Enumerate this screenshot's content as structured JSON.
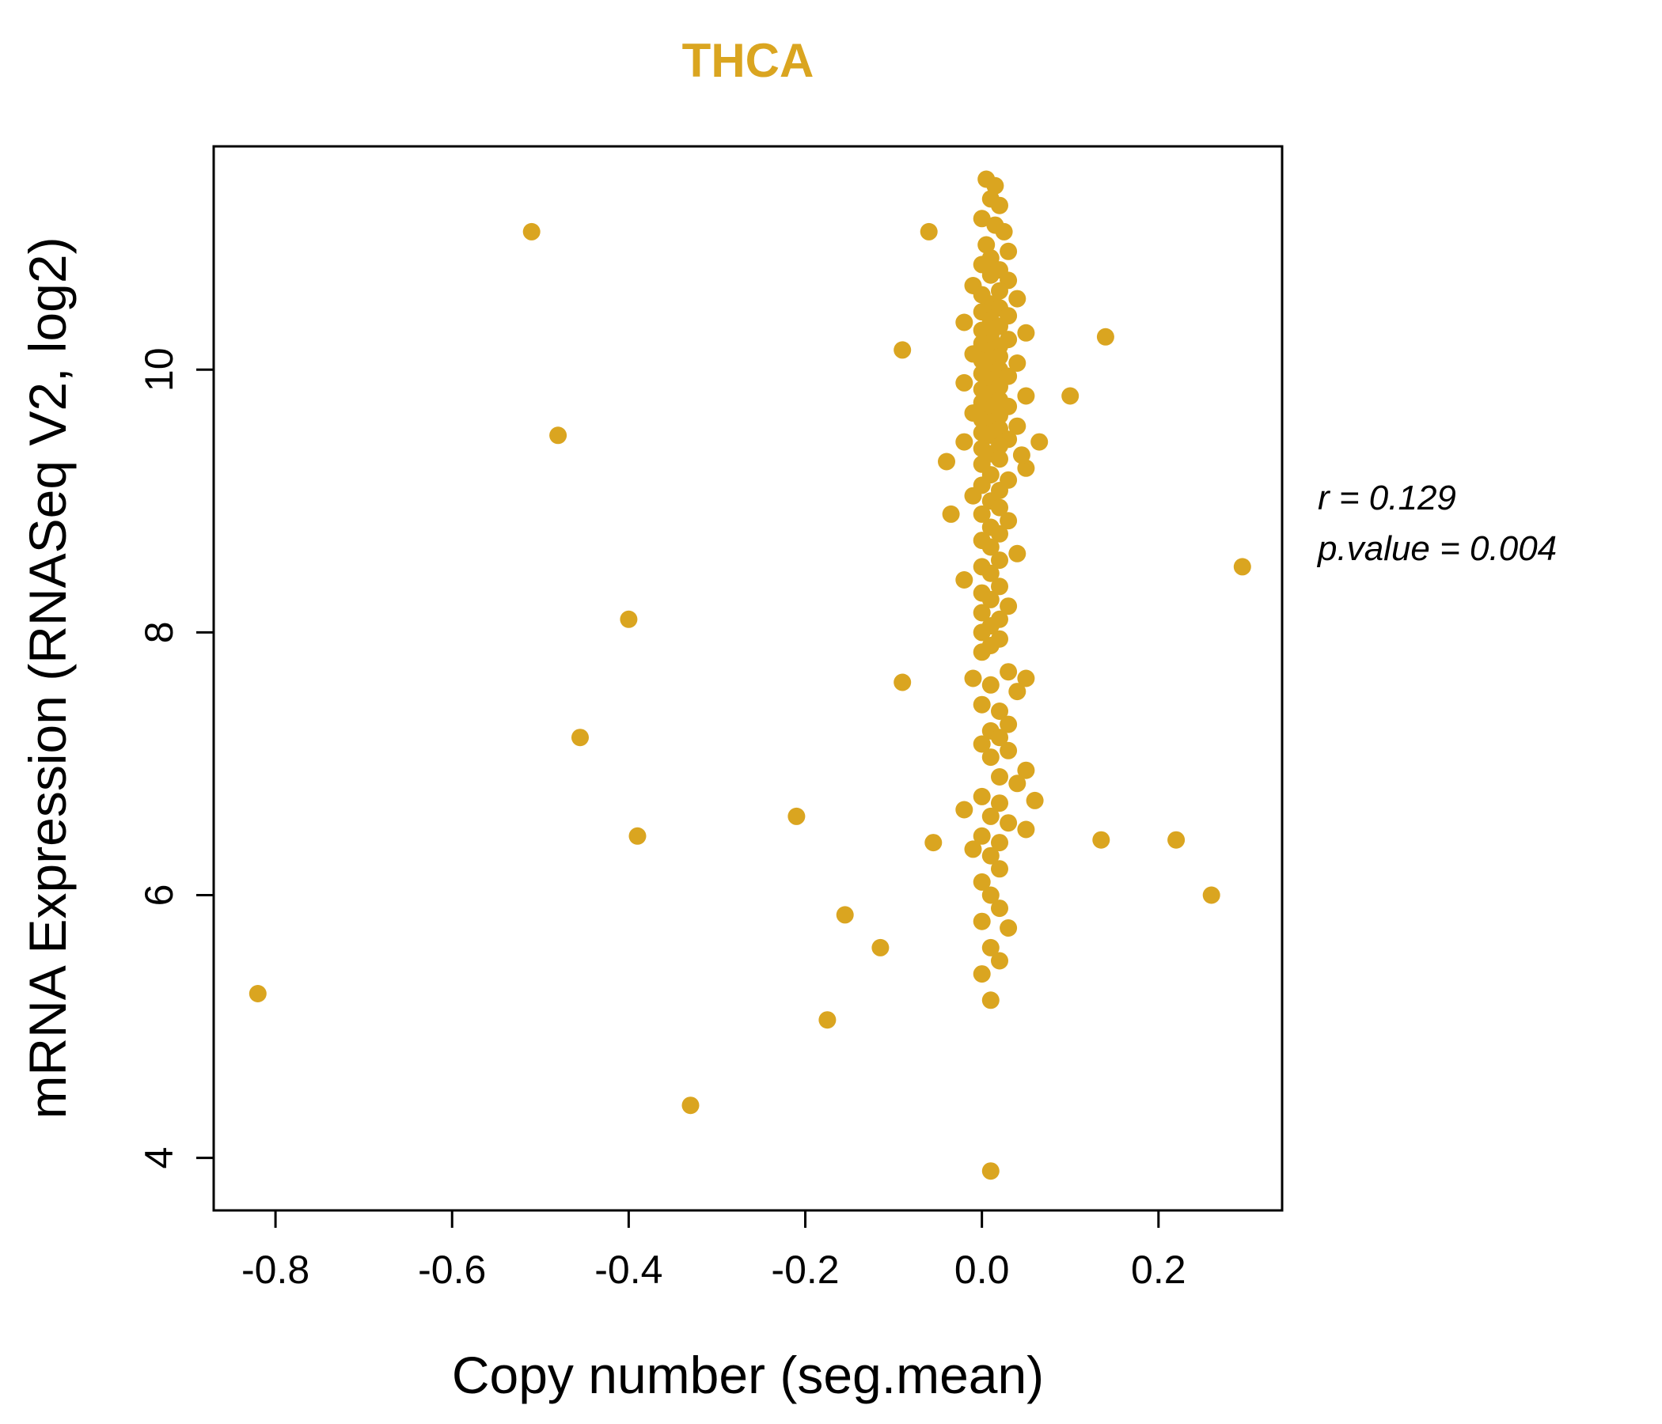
{
  "title": "THCA",
  "accent_color": "#DAA520",
  "xlabel": "Copy number (seg.mean)",
  "ylabel": "mRNA Expression (RNASeq V2, log2)",
  "annotation": {
    "line1": "r = 0.129",
    "line2": "p.value = 0.004"
  },
  "chart_data": {
    "type": "scatter",
    "title": "THCA",
    "xlabel": "Copy number (seg.mean)",
    "ylabel": "mRNA Expression (RNASeq V2, log2)",
    "legend": "none",
    "grid": false,
    "point_color": "#DAA520",
    "xlim": [
      -0.87,
      0.34
    ],
    "ylim": [
      3.6,
      11.7
    ],
    "x_tick_values": [
      -0.8,
      -0.6,
      -0.4,
      -0.2,
      0.0,
      0.2
    ],
    "x_tick_labels": [
      "-0.8",
      "-0.6",
      "-0.4",
      "-0.2",
      "0.0",
      "0.2"
    ],
    "y_tick_values": [
      4,
      6,
      8,
      10
    ],
    "y_tick_labels": [
      "4",
      "6",
      "8",
      "10"
    ],
    "correlation_r": 0.129,
    "p_value": 0.004,
    "points": [
      [
        -0.82,
        5.25
      ],
      [
        -0.51,
        11.05
      ],
      [
        -0.48,
        9.5
      ],
      [
        -0.455,
        7.2
      ],
      [
        -0.4,
        8.1
      ],
      [
        -0.39,
        6.45
      ],
      [
        -0.33,
        4.4
      ],
      [
        -0.21,
        6.6
      ],
      [
        -0.175,
        5.05
      ],
      [
        -0.155,
        5.85
      ],
      [
        -0.115,
        5.6
      ],
      [
        -0.09,
        7.62
      ],
      [
        -0.09,
        10.15
      ],
      [
        -0.06,
        11.05
      ],
      [
        -0.055,
        6.4
      ],
      [
        0.1,
        9.8
      ],
      [
        0.14,
        10.25
      ],
      [
        0.135,
        6.42
      ],
      [
        0.22,
        6.42
      ],
      [
        0.26,
        6.0
      ],
      [
        0.295,
        8.5
      ],
      [
        0.01,
        3.9
      ],
      [
        0.065,
        9.45
      ],
      [
        0.06,
        6.72
      ],
      [
        0.005,
        11.45
      ],
      [
        0.015,
        11.4
      ],
      [
        0.01,
        11.3
      ],
      [
        0.02,
        11.25
      ],
      [
        0.0,
        11.15
      ],
      [
        0.015,
        11.1
      ],
      [
        0.025,
        11.05
      ],
      [
        0.005,
        10.95
      ],
      [
        0.03,
        10.9
      ],
      [
        0.01,
        10.85
      ],
      [
        0.0,
        10.8
      ],
      [
        0.02,
        10.76
      ],
      [
        0.01,
        10.72
      ],
      [
        0.03,
        10.68
      ],
      [
        -0.01,
        10.64
      ],
      [
        0.02,
        10.6
      ],
      [
        0.0,
        10.57
      ],
      [
        0.04,
        10.54
      ],
      [
        0.01,
        10.5
      ],
      [
        0.02,
        10.47
      ],
      [
        0.0,
        10.44
      ],
      [
        0.03,
        10.41
      ],
      [
        0.01,
        10.38
      ],
      [
        -0.02,
        10.36
      ],
      [
        0.02,
        10.33
      ],
      [
        0.0,
        10.3
      ],
      [
        0.05,
        10.28
      ],
      [
        0.01,
        10.26
      ],
      [
        0.03,
        10.23
      ],
      [
        0.0,
        10.2
      ],
      [
        0.02,
        10.18
      ],
      [
        0.01,
        10.15
      ],
      [
        -0.01,
        10.12
      ],
      [
        0.02,
        10.1
      ],
      [
        0.0,
        10.07
      ],
      [
        0.04,
        10.05
      ],
      [
        0.01,
        10.02
      ],
      [
        0.02,
        10.0
      ],
      [
        0.0,
        9.97
      ],
      [
        0.03,
        9.95
      ],
      [
        0.01,
        9.92
      ],
      [
        -0.02,
        9.9
      ],
      [
        0.02,
        9.87
      ],
      [
        0.0,
        9.85
      ],
      [
        0.01,
        9.82
      ],
      [
        0.05,
        9.8
      ],
      [
        0.02,
        9.77
      ],
      [
        0.0,
        9.75
      ],
      [
        0.03,
        9.72
      ],
      [
        0.01,
        9.7
      ],
      [
        -0.01,
        9.67
      ],
      [
        0.02,
        9.65
      ],
      [
        0.0,
        9.62
      ],
      [
        0.01,
        9.6
      ],
      [
        0.04,
        9.57
      ],
      [
        0.02,
        9.55
      ],
      [
        0.0,
        9.52
      ],
      [
        0.01,
        9.5
      ],
      [
        0.03,
        9.47
      ],
      [
        -0.02,
        9.45
      ],
      [
        0.02,
        9.42
      ],
      [
        0.0,
        9.4
      ],
      [
        0.01,
        9.36
      ],
      [
        0.02,
        9.32
      ],
      [
        0.0,
        9.28
      ],
      [
        0.05,
        9.25
      ],
      [
        0.01,
        9.2
      ],
      [
        0.03,
        9.16
      ],
      [
        0.0,
        9.12
      ],
      [
        0.02,
        9.08
      ],
      [
        -0.01,
        9.04
      ],
      [
        0.01,
        9.0
      ],
      [
        -0.04,
        9.3
      ],
      [
        -0.035,
        8.9
      ],
      [
        0.045,
        9.35
      ],
      [
        0.02,
        8.95
      ],
      [
        0.0,
        8.9
      ],
      [
        0.03,
        8.85
      ],
      [
        0.01,
        8.8
      ],
      [
        0.02,
        8.75
      ],
      [
        0.0,
        8.7
      ],
      [
        0.01,
        8.65
      ],
      [
        0.04,
        8.6
      ],
      [
        0.02,
        8.55
      ],
      [
        0.0,
        8.5
      ],
      [
        0.01,
        8.45
      ],
      [
        -0.02,
        8.4
      ],
      [
        0.02,
        8.35
      ],
      [
        0.0,
        8.3
      ],
      [
        0.01,
        8.25
      ],
      [
        0.03,
        8.2
      ],
      [
        0.0,
        8.15
      ],
      [
        0.02,
        8.1
      ],
      [
        0.01,
        8.05
      ],
      [
        0.0,
        8.0
      ],
      [
        0.02,
        7.95
      ],
      [
        0.01,
        7.9
      ],
      [
        0.0,
        7.85
      ],
      [
        0.03,
        7.7
      ],
      [
        -0.01,
        7.65
      ],
      [
        0.05,
        7.65
      ],
      [
        0.01,
        7.6
      ],
      [
        0.04,
        7.55
      ],
      [
        0.0,
        7.45
      ],
      [
        0.02,
        7.4
      ],
      [
        0.03,
        7.3
      ],
      [
        0.01,
        7.25
      ],
      [
        0.02,
        7.2
      ],
      [
        0.0,
        7.15
      ],
      [
        0.03,
        7.1
      ],
      [
        0.01,
        7.05
      ],
      [
        0.05,
        6.95
      ],
      [
        0.02,
        6.9
      ],
      [
        0.04,
        6.85
      ],
      [
        0.0,
        6.75
      ],
      [
        0.02,
        6.7
      ],
      [
        -0.02,
        6.65
      ],
      [
        0.01,
        6.6
      ],
      [
        0.03,
        6.55
      ],
      [
        0.05,
        6.5
      ],
      [
        0.0,
        6.45
      ],
      [
        0.02,
        6.4
      ],
      [
        -0.01,
        6.35
      ],
      [
        0.01,
        6.3
      ],
      [
        0.02,
        6.2
      ],
      [
        0.0,
        6.1
      ],
      [
        0.01,
        6.0
      ],
      [
        0.02,
        5.9
      ],
      [
        0.0,
        5.8
      ],
      [
        0.03,
        5.75
      ],
      [
        0.01,
        5.6
      ],
      [
        0.02,
        5.5
      ],
      [
        0.0,
        5.4
      ],
      [
        0.01,
        5.2
      ]
    ]
  }
}
